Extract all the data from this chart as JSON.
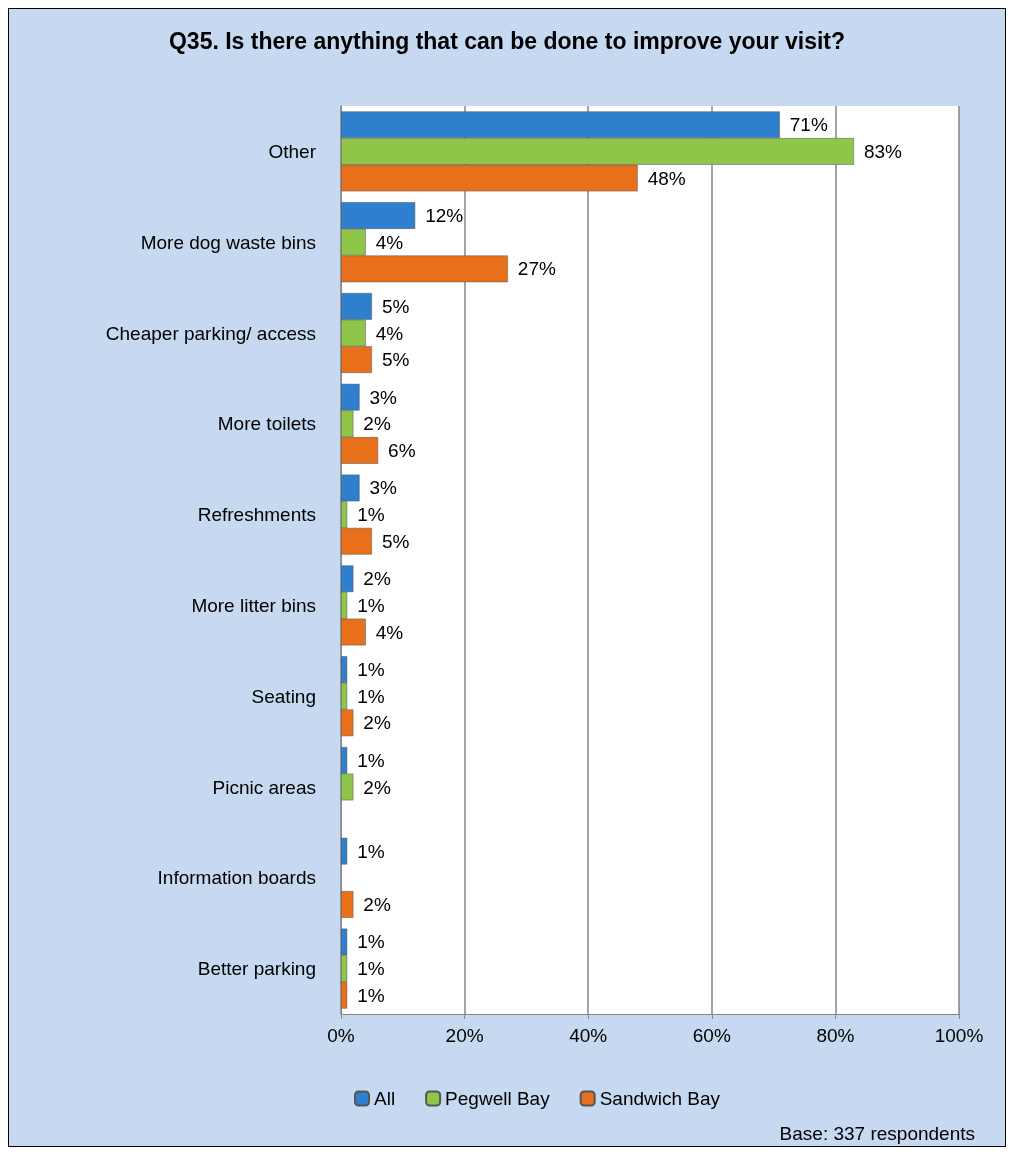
{
  "chart_data": {
    "type": "bar",
    "orientation": "horizontal",
    "title": "Q35. Is there anything that can be done to improve your visit?",
    "categories": [
      "Other",
      "More dog waste bins",
      "Cheaper parking/ access",
      "More toilets",
      "Refreshments",
      "More litter bins",
      "Seating",
      "Picnic areas",
      "Information boards",
      "Better parking"
    ],
    "series": [
      {
        "name": "All",
        "color": "#2f7fcf",
        "values": [
          71,
          12,
          5,
          3,
          3,
          2,
          1,
          1,
          1,
          1
        ],
        "value_labels": [
          "71%",
          "12%",
          "5%",
          "3%",
          "3%",
          "2%",
          "1%",
          "1%",
          "1%",
          "1%"
        ]
      },
      {
        "name": "Pegwell Bay",
        "color": "#8fc64a",
        "values": [
          83,
          4,
          4,
          2,
          1,
          1,
          1,
          2,
          null,
          1
        ],
        "value_labels": [
          "83%",
          "4%",
          "4%",
          "2%",
          "1%",
          "1%",
          "1%",
          "2%",
          null,
          "1%"
        ]
      },
      {
        "name": "Sandwich Bay",
        "color": "#e8701a",
        "values": [
          48,
          27,
          5,
          6,
          5,
          4,
          2,
          null,
          2,
          1
        ],
        "value_labels": [
          "48%",
          "27%",
          "5%",
          "6%",
          "5%",
          "4%",
          "2%",
          null,
          "2%",
          "1%"
        ]
      }
    ],
    "xlim": [
      0,
      100
    ],
    "xticks": [
      {
        "value": 0,
        "label": "0%"
      },
      {
        "value": 20,
        "label": "20%"
      },
      {
        "value": 40,
        "label": "40%"
      },
      {
        "value": 60,
        "label": "60%"
      },
      {
        "value": 80,
        "label": "80%"
      },
      {
        "value": 100,
        "label": "100%"
      }
    ],
    "grid": "x",
    "legend": "bottom",
    "annotations": [
      "Base: 337 respondents"
    ]
  }
}
